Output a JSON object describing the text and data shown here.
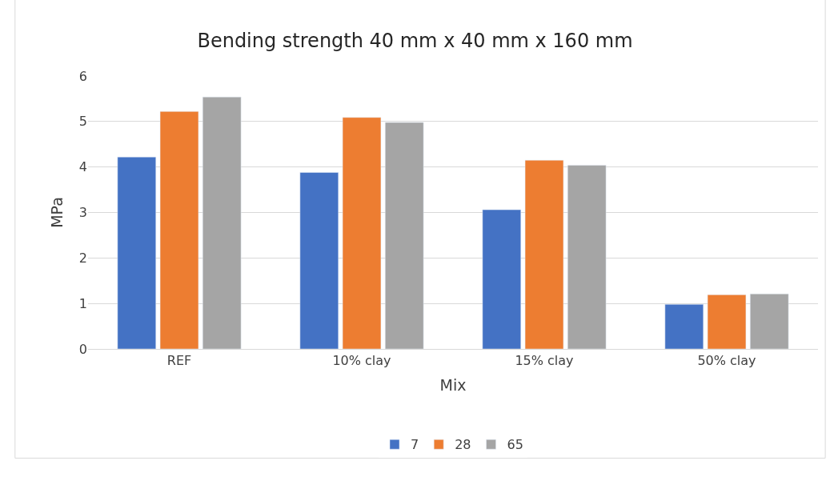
{
  "chart_data": {
    "type": "bar",
    "title": "Bending strength 40 mm x 40 mm x 160 mm",
    "xlabel": "Mix",
    "ylabel": "MPa",
    "categories": [
      "REF",
      "10% clay",
      "15% clay",
      "50% clay"
    ],
    "series": [
      {
        "name": "7",
        "color": "#4472c4",
        "values": [
          4.22,
          3.88,
          3.06,
          0.98
        ]
      },
      {
        "name": "28",
        "color": "#ed7d31",
        "values": [
          5.22,
          5.09,
          4.15,
          1.19
        ]
      },
      {
        "name": "65",
        "color": "#a5a5a5",
        "values": [
          5.54,
          4.98,
          4.04,
          1.21
        ]
      }
    ],
    "ylim": [
      0,
      6
    ],
    "yticks": [
      0,
      1,
      2,
      3,
      4,
      5,
      6
    ],
    "grid": "y",
    "legend": "bottom"
  }
}
